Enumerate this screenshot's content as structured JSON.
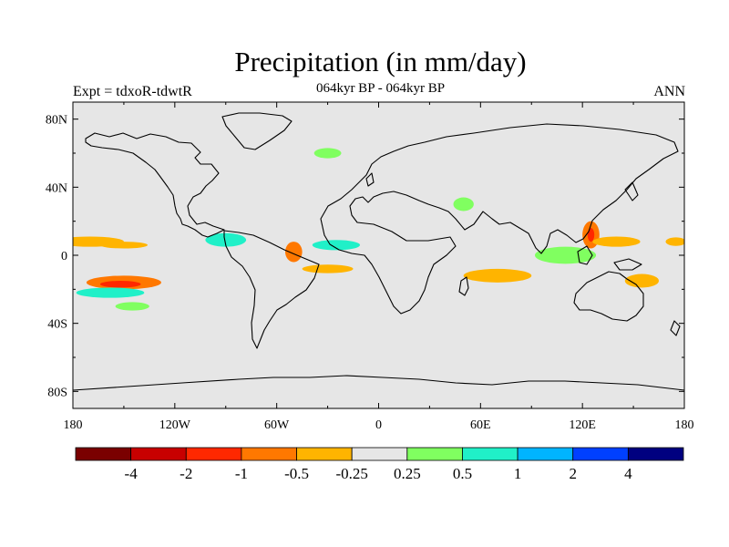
{
  "title": "Precipitation (in mm/day)",
  "subtitle": "064kyr BP - 064kyr BP",
  "left_label": "Expt = tdxoR-tdwtR",
  "right_label": "ANN",
  "x_ticks": [
    "180",
    "120W",
    "60W",
    "0",
    "60E",
    "120E",
    "180"
  ],
  "y_ticks": [
    "80N",
    "40N",
    "0",
    "40S",
    "80S"
  ],
  "colorbar": {
    "colors": [
      "#7a0000",
      "#c80000",
      "#ff2800",
      "#ff7800",
      "#ffb400",
      "#e6e6e6",
      "#80ff60",
      "#20f0c8",
      "#00b4ff",
      "#0040ff",
      "#000080"
    ],
    "labels": [
      "-4",
      "-2",
      "-1",
      "-0.5",
      "-0.25",
      "0.25",
      "0.5",
      "1",
      "2",
      "4"
    ]
  },
  "colors": {
    "background": "#e6e6e6",
    "coast": "#000000"
  },
  "map_data": {
    "projection": "cylindrical-equidistant",
    "lon_range": [
      -180,
      180
    ],
    "lat_range": [
      -90,
      90
    ],
    "anomaly_patches": [
      {
        "lon": -170,
        "lat": 8,
        "rx": 20,
        "ry": 3,
        "level": "-0.5",
        "color": "#ffb400"
      },
      {
        "lon": -150,
        "lat": 6,
        "rx": 14,
        "ry": 2,
        "level": "-0.25",
        "color": "#ffb400"
      },
      {
        "lon": -150,
        "lat": -16,
        "rx": 22,
        "ry": 4,
        "level": "-1",
        "color": "#ff7800"
      },
      {
        "lon": -152,
        "lat": -17,
        "rx": 12,
        "ry": 2,
        "level": "-2",
        "color": "#ff2800"
      },
      {
        "lon": -158,
        "lat": -22,
        "rx": 20,
        "ry": 3,
        "level": "0.5",
        "color": "#20f0c8"
      },
      {
        "lon": -145,
        "lat": -30,
        "rx": 10,
        "ry": 2.5,
        "level": "0.25",
        "color": "#80ff60"
      },
      {
        "lon": -90,
        "lat": 9,
        "rx": 12,
        "ry": 4,
        "level": "0.5",
        "color": "#20f0c8"
      },
      {
        "lon": -50,
        "lat": 2,
        "rx": 5,
        "ry": 6,
        "level": "-1",
        "color": "#ff7800"
      },
      {
        "lon": -25,
        "lat": 6,
        "rx": 14,
        "ry": 3,
        "level": "0.5",
        "color": "#20f0c8"
      },
      {
        "lon": -30,
        "lat": -8,
        "rx": 15,
        "ry": 2.5,
        "level": "-0.25",
        "color": "#ffb400"
      },
      {
        "lon": 70,
        "lat": -12,
        "rx": 20,
        "ry": 4,
        "level": "-0.25",
        "color": "#ffb400"
      },
      {
        "lon": 110,
        "lat": 0,
        "rx": 18,
        "ry": 5,
        "level": "0.25",
        "color": "#80ff60"
      },
      {
        "lon": 125,
        "lat": 12,
        "rx": 5,
        "ry": 8,
        "level": "-1",
        "color": "#ff7800"
      },
      {
        "lon": 125,
        "lat": 12,
        "rx": 2,
        "ry": 4,
        "level": "-2",
        "color": "#ff2800"
      },
      {
        "lon": 140,
        "lat": 8,
        "rx": 14,
        "ry": 3,
        "level": "-0.5",
        "color": "#ffb400"
      },
      {
        "lon": 175,
        "lat": 8,
        "rx": 6,
        "ry": 2.5,
        "level": "-0.5",
        "color": "#ffb400"
      },
      {
        "lon": 155,
        "lat": -15,
        "rx": 10,
        "ry": 4,
        "level": "-0.5",
        "color": "#ffb400"
      },
      {
        "lon": 50,
        "lat": 30,
        "rx": 6,
        "ry": 4,
        "level": "0.25",
        "color": "#80ff60"
      },
      {
        "lon": -30,
        "lat": 60,
        "rx": 8,
        "ry": 3,
        "level": "0.25",
        "color": "#80ff60"
      }
    ]
  }
}
